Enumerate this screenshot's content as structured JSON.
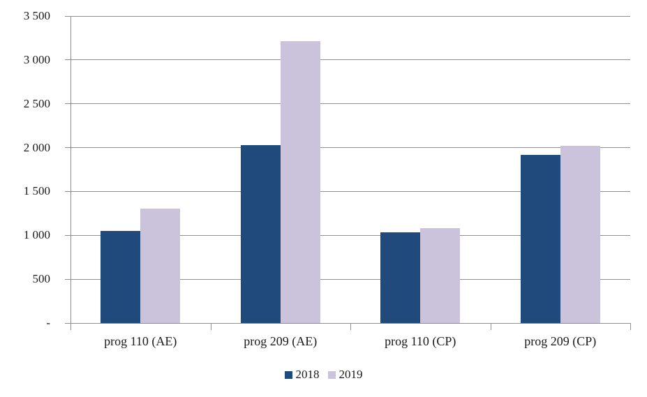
{
  "chart_data": {
    "type": "bar",
    "title": "",
    "xlabel": "",
    "ylabel": "",
    "categories": [
      "prog 110 (AE)",
      "prog 209 (AE)",
      "prog 110 (CP)",
      "prog 209 (CP)"
    ],
    "series": [
      {
        "name": "2018",
        "color": "#204A7B",
        "values": [
          1050,
          2025,
          1035,
          1920
        ]
      },
      {
        "name": "2019",
        "color": "#CBC3DB",
        "values": [
          1305,
          3210,
          1080,
          2020
        ]
      }
    ],
    "ylim": [
      0,
      3500
    ],
    "y_tick_step": 500,
    "y_tick_labels": [
      "-",
      "500",
      "1 000",
      "1 500",
      "2 000",
      "2 500",
      "3 000",
      "3 500"
    ],
    "grid": true,
    "grid_color": "#8F8F8F",
    "text_color": "#1A1A1A",
    "legend_position": "bottom"
  }
}
